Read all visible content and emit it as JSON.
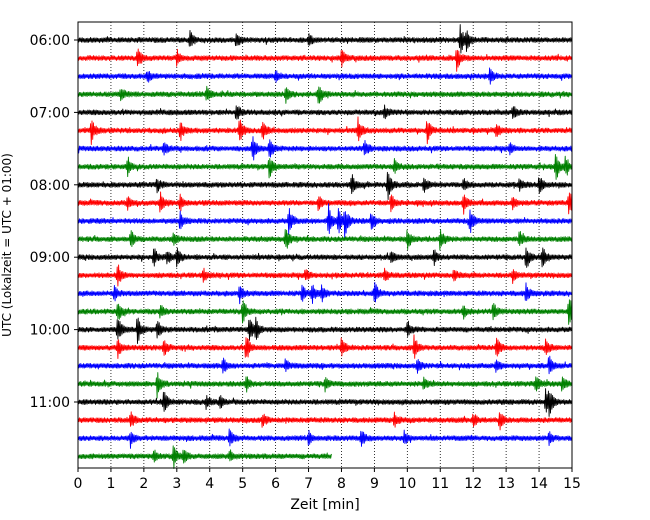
{
  "chart_data": {
    "type": "line",
    "subtype": "helicorder",
    "xlabel": "Zeit  [min]",
    "ylabel": "UTC (Lokalzeit = UTC + 01:00)",
    "xlim": [
      0,
      15
    ],
    "x_ticks": [
      "0",
      "1",
      "2",
      "3",
      "4",
      "5",
      "6",
      "7",
      "8",
      "9",
      "10",
      "11",
      "12",
      "13",
      "14",
      "15"
    ],
    "y_tick_labels": [
      "06:00",
      "07:00",
      "08:00",
      "09:00",
      "10:00",
      "11:00"
    ],
    "y_tick_rows": [
      0,
      4,
      8,
      12,
      16,
      20
    ],
    "minutes_per_row": 15,
    "row_count": 24,
    "last_row_end_minute": 7.7,
    "grid": "vertical-dotted",
    "colors": [
      "#000000",
      "#ff0000",
      "#0000ff",
      "#008000"
    ],
    "events": [
      [
        [
          3.4,
          0.5
        ],
        [
          4.8,
          0.5
        ],
        [
          7.0,
          0.4
        ],
        [
          11.6,
          1.0
        ],
        [
          11.8,
          0.6
        ]
      ],
      [
        [
          1.8,
          0.7
        ],
        [
          3.0,
          0.5
        ],
        [
          8.0,
          0.5
        ],
        [
          11.5,
          0.7
        ]
      ],
      [
        [
          2.1,
          0.4
        ],
        [
          6.0,
          0.4
        ],
        [
          12.5,
          0.5
        ]
      ],
      [
        [
          3.9,
          0.5
        ],
        [
          6.3,
          0.5
        ],
        [
          7.3,
          0.7
        ],
        [
          1.3,
          0.4
        ]
      ],
      [
        [
          4.8,
          0.6
        ],
        [
          9.3,
          0.4
        ],
        [
          13.2,
          0.4
        ]
      ],
      [
        [
          0.4,
          0.8
        ],
        [
          3.1,
          0.6
        ],
        [
          4.9,
          0.8
        ],
        [
          5.6,
          0.5
        ],
        [
          8.5,
          0.8
        ],
        [
          10.6,
          0.7
        ],
        [
          12.7,
          0.5
        ]
      ],
      [
        [
          2.6,
          0.4
        ],
        [
          5.3,
          0.9
        ],
        [
          5.8,
          0.6
        ],
        [
          8.7,
          0.6
        ],
        [
          13.1,
          0.4
        ]
      ],
      [
        [
          1.5,
          0.5
        ],
        [
          5.8,
          0.8
        ],
        [
          9.6,
          0.4
        ],
        [
          14.5,
          0.9
        ],
        [
          14.8,
          0.6
        ]
      ],
      [
        [
          2.4,
          0.4
        ],
        [
          8.3,
          0.7
        ],
        [
          9.4,
          0.9
        ],
        [
          10.5,
          0.5
        ],
        [
          11.7,
          0.4
        ],
        [
          13.4,
          0.4
        ],
        [
          14.0,
          0.6
        ]
      ],
      [
        [
          1.5,
          0.4
        ],
        [
          2.5,
          0.7
        ],
        [
          3.1,
          0.5
        ],
        [
          7.3,
          0.4
        ],
        [
          9.5,
          0.5
        ],
        [
          11.7,
          0.6
        ],
        [
          13.2,
          0.4
        ],
        [
          14.9,
          0.9
        ]
      ],
      [
        [
          3.1,
          0.6
        ],
        [
          6.4,
          0.9
        ],
        [
          7.6,
          1.0
        ],
        [
          7.9,
          0.8
        ],
        [
          8.1,
          0.9
        ],
        [
          8.9,
          0.6
        ],
        [
          11.9,
          0.8
        ]
      ],
      [
        [
          1.6,
          0.6
        ],
        [
          2.9,
          0.5
        ],
        [
          6.3,
          0.8
        ],
        [
          10.0,
          0.6
        ],
        [
          11.0,
          0.7
        ],
        [
          13.4,
          0.5
        ]
      ],
      [
        [
          2.3,
          0.6
        ],
        [
          2.7,
          0.5
        ],
        [
          3.0,
          0.6
        ],
        [
          9.5,
          0.4
        ],
        [
          10.8,
          0.5
        ],
        [
          13.6,
          0.8
        ],
        [
          14.1,
          0.6
        ]
      ],
      [
        [
          1.2,
          0.8
        ],
        [
          3.8,
          0.4
        ],
        [
          6.9,
          0.4
        ],
        [
          9.3,
          0.4
        ],
        [
          11.4,
          0.4
        ],
        [
          13.2,
          0.4
        ]
      ],
      [
        [
          1.1,
          0.4
        ],
        [
          4.9,
          0.6
        ],
        [
          6.8,
          0.5
        ],
        [
          7.1,
          0.6
        ],
        [
          7.4,
          0.5
        ],
        [
          9.0,
          0.8
        ],
        [
          13.6,
          0.5
        ]
      ],
      [
        [
          1.2,
          0.6
        ],
        [
          2.5,
          0.4
        ],
        [
          5.0,
          0.8
        ],
        [
          11.7,
          0.4
        ],
        [
          12.6,
          0.5
        ],
        [
          14.9,
          1.0
        ]
      ],
      [
        [
          1.2,
          0.9
        ],
        [
          1.8,
          0.9
        ],
        [
          2.4,
          0.6
        ],
        [
          5.2,
          0.8
        ],
        [
          5.4,
          0.6
        ],
        [
          10.0,
          0.5
        ]
      ],
      [
        [
          1.2,
          0.6
        ],
        [
          2.6,
          0.5
        ],
        [
          5.1,
          0.9
        ],
        [
          8.0,
          0.7
        ],
        [
          10.2,
          0.8
        ],
        [
          12.7,
          0.7
        ],
        [
          14.2,
          0.5
        ]
      ],
      [
        [
          4.4,
          0.5
        ],
        [
          6.3,
          0.4
        ],
        [
          10.3,
          0.4
        ],
        [
          12.7,
          0.4
        ],
        [
          14.3,
          0.6
        ]
      ],
      [
        [
          2.4,
          0.8
        ],
        [
          5.1,
          0.5
        ],
        [
          7.5,
          0.4
        ],
        [
          10.5,
          0.4
        ],
        [
          13.9,
          0.6
        ],
        [
          14.7,
          0.6
        ]
      ],
      [
        [
          2.6,
          0.7
        ],
        [
          3.9,
          0.4
        ],
        [
          4.3,
          0.4
        ],
        [
          14.2,
          0.9
        ],
        [
          14.3,
          0.8
        ]
      ],
      [
        [
          1.6,
          0.5
        ],
        [
          5.6,
          0.4
        ],
        [
          9.6,
          0.4
        ],
        [
          12.0,
          0.5
        ],
        [
          12.8,
          0.6
        ]
      ],
      [
        [
          1.6,
          0.5
        ],
        [
          4.6,
          0.6
        ],
        [
          7.0,
          0.4
        ],
        [
          8.6,
          0.6
        ],
        [
          9.9,
          0.4
        ],
        [
          14.3,
          0.4
        ]
      ],
      [
        [
          2.3,
          0.4
        ],
        [
          2.9,
          0.7
        ],
        [
          3.2,
          0.5
        ],
        [
          4.6,
          0.4
        ]
      ]
    ]
  }
}
